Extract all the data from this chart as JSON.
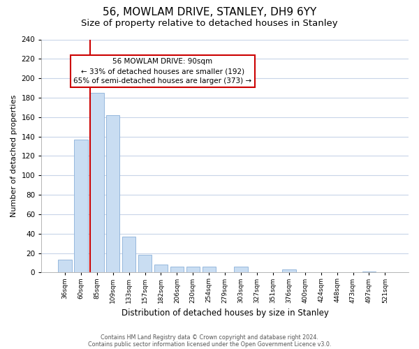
{
  "title": "56, MOWLAM DRIVE, STANLEY, DH9 6YY",
  "subtitle": "Size of property relative to detached houses in Stanley",
  "xlabel": "Distribution of detached houses by size in Stanley",
  "ylabel": "Number of detached properties",
  "bar_labels": [
    "36sqm",
    "60sqm",
    "85sqm",
    "109sqm",
    "133sqm",
    "157sqm",
    "182sqm",
    "206sqm",
    "230sqm",
    "254sqm",
    "279sqm",
    "303sqm",
    "327sqm",
    "351sqm",
    "376sqm",
    "400sqm",
    "424sqm",
    "448sqm",
    "473sqm",
    "497sqm",
    "521sqm"
  ],
  "bar_heights": [
    13,
    137,
    185,
    162,
    37,
    18,
    8,
    6,
    6,
    6,
    0,
    6,
    0,
    0,
    3,
    0,
    0,
    0,
    0,
    1,
    0
  ],
  "bar_color": "#c9ddf2",
  "bar_edge_color": "#8ab0d8",
  "ylim": [
    0,
    240
  ],
  "yticks": [
    0,
    20,
    40,
    60,
    80,
    100,
    120,
    140,
    160,
    180,
    200,
    220,
    240
  ],
  "property_line_bar_index": 2,
  "property_line_color": "#cc0000",
  "annotation_title": "56 MOWLAM DRIVE: 90sqm",
  "annotation_line1": "← 33% of detached houses are smaller (192)",
  "annotation_line2": "65% of semi-detached houses are larger (373) →",
  "footer1": "Contains HM Land Registry data © Crown copyright and database right 2024.",
  "footer2": "Contains public sector information licensed under the Open Government Licence v3.0.",
  "background_color": "#ffffff",
  "grid_color": "#c8d4e8",
  "title_fontsize": 11,
  "subtitle_fontsize": 9.5,
  "ylabel_fontsize": 8,
  "xlabel_fontsize": 8.5
}
